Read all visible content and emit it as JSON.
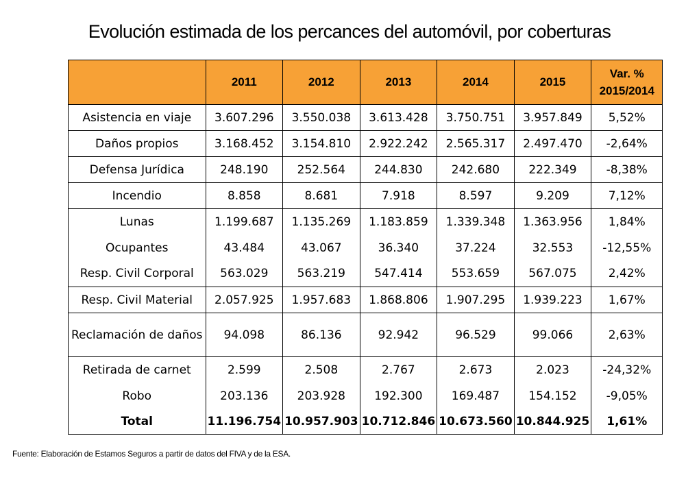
{
  "title": "Evolución estimada de los percances del automóvil, por coberturas",
  "table": {
    "headers": [
      "",
      "2011",
      "2012",
      "2013",
      "2014",
      "2015",
      "Var. %\n2015/2014"
    ],
    "header_var_line1": "Var. %",
    "header_var_line2": "2015/2014",
    "rows": [
      {
        "label": "Asistencia en viaje",
        "values": [
          "3.607.296",
          "3.550.038",
          "3.613.428",
          "3.750.751",
          "3.957.849",
          "5,52%"
        ]
      },
      {
        "label": "Daños propios",
        "values": [
          "3.168.452",
          "3.154.810",
          "2.922.242",
          "2.565.317",
          "2.497.470",
          "-2,64%"
        ]
      },
      {
        "label": "Defensa Jurídica",
        "values": [
          "248.190",
          "252.564",
          "244.830",
          "242.680",
          "222.349",
          "-8,38%"
        ]
      },
      {
        "label": "Incendio",
        "values": [
          "8.858",
          "8.681",
          "7.918",
          "8.597",
          "9.209",
          "7,12%"
        ]
      },
      {
        "label": "Lunas",
        "values": [
          "1.199.687",
          "1.135.269",
          "1.183.859",
          "1.339.348",
          "1.363.956",
          "1,84%"
        ]
      },
      {
        "label": "Ocupantes",
        "values": [
          "43.484",
          "43.067",
          "36.340",
          "37.224",
          "32.553",
          "-12,55%"
        ]
      },
      {
        "label": "Resp. Civil Corporal",
        "values": [
          "563.029",
          "563.219",
          "547.414",
          "553.659",
          "567.075",
          "2,42%"
        ]
      },
      {
        "label": "Resp. Civil Material",
        "values": [
          "2.057.925",
          "1.957.683",
          "1.868.806",
          "1.907.295",
          "1.939.223",
          "1,67%"
        ]
      },
      {
        "label": "Reclamación de daños",
        "values": [
          "94.098",
          "86.136",
          "92.942",
          "96.529",
          "99.066",
          "2,63%"
        ]
      },
      {
        "label": "Retirada de carnet",
        "values": [
          "2.599",
          "2.508",
          "2.767",
          "2.673",
          "2.023",
          "-24,32%"
        ]
      },
      {
        "label": "Robo",
        "values": [
          "203.136",
          "203.928",
          "192.300",
          "169.487",
          "154.152",
          "-9,05%"
        ]
      },
      {
        "label": "Total",
        "values": [
          "11.196.754",
          "10.957.903",
          "10.712.846",
          "10.673.560",
          "10.844.925",
          "1,61%"
        ]
      }
    ]
  },
  "source": "Fuente: Elaboración de Estamos Seguros a partir de datos del FIVA y de la ESA.",
  "colors": {
    "header_bg": "#f7a136"
  }
}
